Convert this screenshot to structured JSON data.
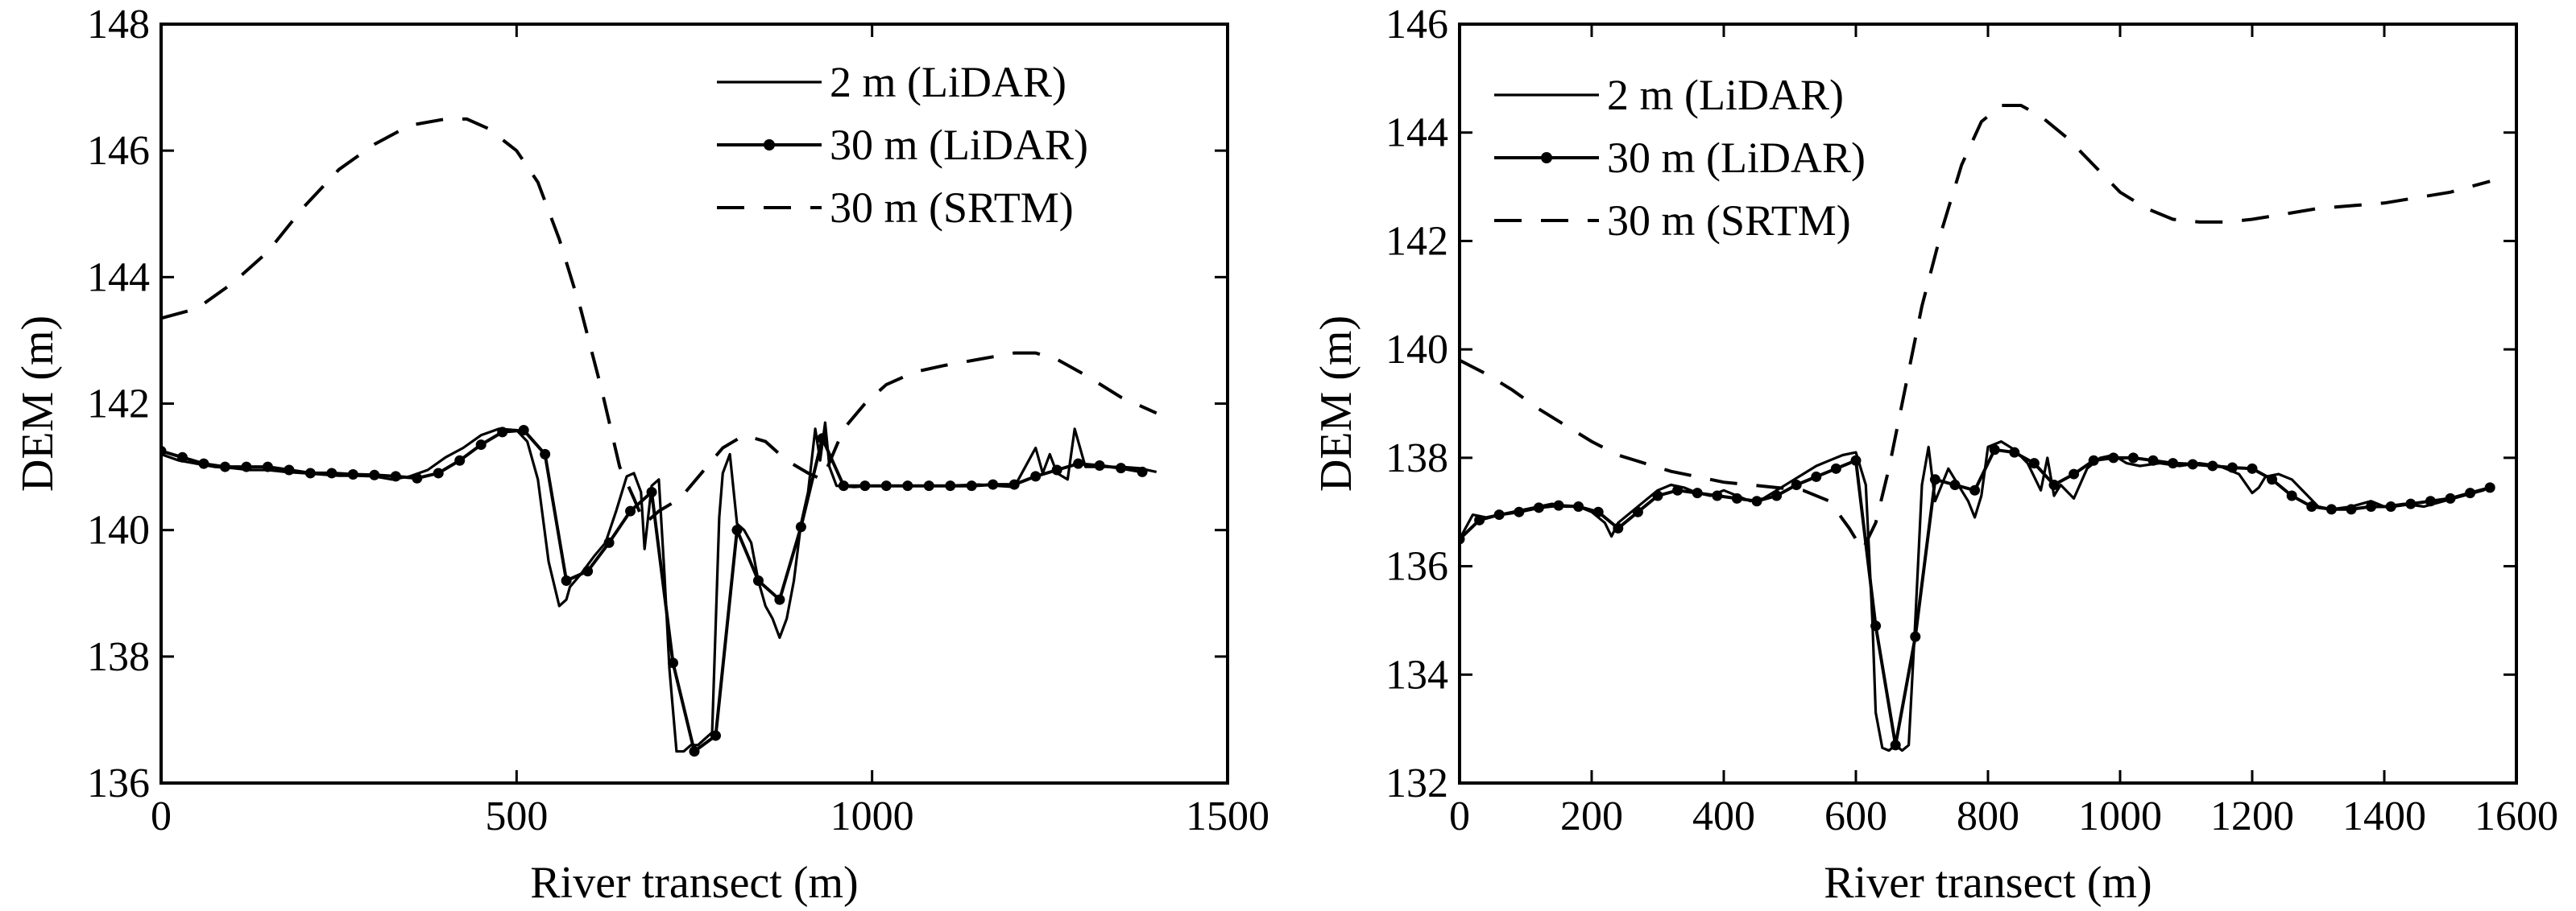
{
  "colors": {
    "line": "#000000",
    "background": "#ffffff"
  },
  "chart_data": [
    {
      "type": "line",
      "xlabel": "River transect (m)",
      "ylabel": "DEM (m)",
      "xlim": [
        0,
        1500
      ],
      "ylim": [
        136,
        148
      ],
      "xticks": [
        "0",
        "500",
        "1000",
        "1500"
      ],
      "yticks": [
        "136",
        "138",
        "140",
        "142",
        "144",
        "146",
        "148"
      ],
      "grid": false,
      "legend_position": "top-right",
      "series": [
        {
          "name": "2 m (LiDAR)",
          "style": "solid",
          "x": [
            0,
            25,
            50,
            75,
            100,
            125,
            150,
            175,
            200,
            225,
            250,
            275,
            300,
            325,
            350,
            375,
            400,
            425,
            450,
            475,
            500,
            515,
            530,
            545,
            560,
            570,
            575,
            590,
            610,
            625,
            640,
            655,
            665,
            675,
            680,
            690,
            700,
            708,
            715,
            725,
            735,
            745,
            755,
            765,
            775,
            785,
            790,
            800,
            810,
            820,
            830,
            840,
            850,
            860,
            870,
            880,
            890,
            900,
            910,
            920,
            927,
            934,
            940,
            950,
            975,
            1000,
            1050,
            1100,
            1150,
            1200,
            1230,
            1240,
            1250,
            1260,
            1275,
            1285,
            1300,
            1325,
            1350,
            1375,
            1400
          ],
          "y": [
            141.2,
            141.1,
            141.05,
            141.0,
            140.98,
            140.95,
            140.95,
            140.92,
            140.9,
            140.88,
            140.86,
            140.86,
            140.85,
            140.8,
            140.85,
            140.95,
            141.15,
            141.3,
            141.5,
            141.6,
            141.58,
            141.4,
            140.8,
            139.5,
            138.8,
            138.9,
            139.1,
            139.3,
            139.6,
            139.8,
            140.3,
            140.85,
            140.9,
            140.6,
            139.7,
            140.7,
            140.8,
            139.3,
            137.8,
            136.5,
            136.5,
            136.6,
            136.6,
            136.7,
            136.8,
            140.2,
            140.9,
            141.2,
            140.1,
            140.0,
            139.8,
            139.2,
            138.8,
            138.6,
            138.3,
            138.6,
            139.2,
            140.1,
            140.6,
            141.6,
            141.1,
            141.7,
            141.0,
            140.7,
            140.68,
            140.7,
            140.7,
            140.7,
            140.72,
            140.68,
            141.3,
            140.9,
            141.2,
            140.9,
            140.8,
            141.6,
            141.0,
            141.0,
            141.0,
            140.98,
            140.92
          ]
        },
        {
          "name": "30 m (LiDAR)",
          "style": "solid-markers",
          "x": [
            0,
            30,
            60,
            90,
            120,
            150,
            180,
            210,
            240,
            270,
            300,
            330,
            360,
            390,
            420,
            450,
            480,
            510,
            540,
            570,
            600,
            630,
            660,
            690,
            720,
            750,
            780,
            810,
            840,
            870,
            900,
            930,
            960,
            990,
            1020,
            1050,
            1080,
            1110,
            1140,
            1170,
            1200,
            1230,
            1260,
            1290,
            1320,
            1350,
            1380
          ],
          "y": [
            141.25,
            141.15,
            141.05,
            141.0,
            141.0,
            141.0,
            140.95,
            140.9,
            140.9,
            140.88,
            140.87,
            140.85,
            140.82,
            140.9,
            141.1,
            141.35,
            141.55,
            141.58,
            141.2,
            139.2,
            139.35,
            139.8,
            140.3,
            140.6,
            137.9,
            136.5,
            136.75,
            140.0,
            139.2,
            138.9,
            140.05,
            141.45,
            140.7,
            140.7,
            140.7,
            140.7,
            140.7,
            140.7,
            140.7,
            140.72,
            140.72,
            140.85,
            140.95,
            141.05,
            141.02,
            140.98,
            140.92
          ]
        },
        {
          "name": "30 m (SRTM)",
          "style": "dashed",
          "x": [
            0,
            50,
            100,
            150,
            200,
            250,
            300,
            350,
            400,
            430,
            460,
            500,
            530,
            560,
            590,
            620,
            645,
            665,
            680,
            700,
            730,
            760,
            790,
            820,
            850,
            880,
            910,
            930,
            945,
            960,
            990,
            1020,
            1060,
            1100,
            1150,
            1200,
            1230,
            1260,
            1300,
            1350,
            1400
          ],
          "y": [
            143.35,
            143.5,
            143.9,
            144.4,
            145.1,
            145.7,
            146.1,
            146.4,
            146.5,
            146.5,
            146.35,
            146.0,
            145.5,
            144.6,
            143.5,
            142.2,
            141.0,
            140.5,
            140.1,
            140.3,
            140.5,
            140.9,
            141.3,
            141.5,
            141.4,
            141.1,
            140.9,
            140.8,
            141.2,
            141.6,
            142.0,
            142.3,
            142.5,
            142.6,
            142.7,
            142.8,
            142.8,
            142.7,
            142.45,
            142.1,
            141.85
          ]
        }
      ]
    },
    {
      "type": "line",
      "xlabel": "River transect (m)",
      "ylabel": "DEM (m)",
      "xlim": [
        0,
        1600
      ],
      "ylim": [
        132,
        146
      ],
      "xticks": [
        "0",
        "200",
        "400",
        "600",
        "800",
        "1000",
        "1200",
        "1400",
        "1600"
      ],
      "yticks": [
        "132",
        "134",
        "136",
        "138",
        "140",
        "142",
        "144",
        "146"
      ],
      "grid": false,
      "legend_position": "top-left",
      "series": [
        {
          "name": "2  m (LiDAR)",
          "style": "solid",
          "x": [
            0,
            20,
            40,
            60,
            80,
            100,
            120,
            140,
            160,
            180,
            200,
            220,
            230,
            240,
            260,
            280,
            300,
            320,
            340,
            360,
            380,
            400,
            420,
            440,
            460,
            480,
            500,
            520,
            540,
            560,
            580,
            600,
            615,
            625,
            630,
            640,
            650,
            660,
            670,
            680,
            690,
            700,
            710,
            720,
            730,
            740,
            750,
            760,
            770,
            780,
            790,
            800,
            820,
            840,
            860,
            880,
            890,
            900,
            910,
            930,
            950,
            970,
            990,
            1010,
            1030,
            1060,
            1090,
            1120,
            1150,
            1180,
            1200,
            1210,
            1220,
            1240,
            1260,
            1280,
            1300,
            1320,
            1350,
            1380,
            1400,
            1430,
            1460,
            1490,
            1520,
            1550,
            1565
          ],
          "y": [
            136.5,
            136.95,
            136.9,
            136.95,
            137.0,
            137.05,
            137.1,
            137.15,
            137.1,
            137.1,
            137.0,
            136.8,
            136.55,
            136.8,
            137.0,
            137.2,
            137.4,
            137.5,
            137.45,
            137.35,
            137.3,
            137.4,
            137.3,
            137.2,
            137.25,
            137.4,
            137.55,
            137.7,
            137.85,
            137.95,
            138.05,
            138.1,
            137.5,
            135.0,
            133.3,
            132.65,
            132.6,
            132.7,
            132.6,
            132.7,
            135.0,
            137.5,
            138.2,
            137.2,
            137.5,
            137.8,
            137.6,
            137.4,
            137.2,
            136.9,
            137.3,
            138.2,
            138.3,
            138.15,
            137.9,
            137.4,
            138.0,
            137.3,
            137.5,
            137.25,
            137.8,
            138.0,
            138.05,
            137.9,
            137.85,
            137.9,
            137.85,
            137.9,
            137.85,
            137.7,
            137.35,
            137.45,
            137.65,
            137.7,
            137.6,
            137.35,
            137.1,
            137.05,
            137.1,
            137.2,
            137.1,
            137.15,
            137.1,
            137.2,
            137.3,
            137.4,
            137.5
          ]
        },
        {
          "name": "30 m (LiDAR)",
          "style": "solid-markers",
          "x": [
            0,
            30,
            60,
            90,
            120,
            150,
            180,
            210,
            240,
            270,
            300,
            330,
            360,
            390,
            420,
            450,
            480,
            510,
            540,
            570,
            600,
            630,
            660,
            690,
            720,
            750,
            780,
            810,
            840,
            870,
            900,
            930,
            960,
            990,
            1020,
            1050,
            1080,
            1110,
            1140,
            1170,
            1200,
            1230,
            1260,
            1290,
            1320,
            1350,
            1380,
            1410,
            1440,
            1470,
            1500,
            1530,
            1560
          ],
          "y": [
            136.5,
            136.85,
            136.95,
            137.0,
            137.08,
            137.12,
            137.1,
            137.0,
            136.7,
            137.0,
            137.3,
            137.4,
            137.35,
            137.3,
            137.25,
            137.2,
            137.3,
            137.5,
            137.65,
            137.8,
            137.95,
            134.9,
            132.7,
            134.7,
            137.6,
            137.5,
            137.4,
            138.15,
            138.1,
            137.9,
            137.5,
            137.7,
            137.95,
            138.0,
            138.0,
            137.95,
            137.9,
            137.88,
            137.85,
            137.82,
            137.8,
            137.6,
            137.3,
            137.1,
            137.05,
            137.05,
            137.1,
            137.1,
            137.15,
            137.2,
            137.25,
            137.35,
            137.45
          ]
        },
        {
          "name": "30 m (SRTM)",
          "style": "dashed",
          "x": [
            0,
            40,
            80,
            120,
            160,
            200,
            240,
            280,
            320,
            360,
            400,
            440,
            480,
            520,
            560,
            590,
            610,
            630,
            650,
            670,
            700,
            730,
            760,
            790,
            820,
            850,
            880,
            920,
            960,
            1000,
            1040,
            1080,
            1120,
            1160,
            1200,
            1250,
            1300,
            1350,
            1400,
            1450,
            1500,
            1560
          ],
          "y": [
            139.8,
            139.55,
            139.25,
            138.9,
            138.6,
            138.3,
            138.05,
            137.9,
            137.75,
            137.65,
            137.55,
            137.5,
            137.45,
            137.4,
            137.2,
            136.7,
            136.3,
            136.8,
            137.8,
            139.0,
            140.8,
            142.2,
            143.4,
            144.2,
            144.5,
            144.5,
            144.3,
            143.9,
            143.4,
            142.9,
            142.6,
            142.4,
            142.35,
            142.35,
            142.4,
            142.5,
            142.6,
            142.65,
            142.7,
            142.8,
            142.9,
            143.1
          ]
        }
      ]
    }
  ]
}
